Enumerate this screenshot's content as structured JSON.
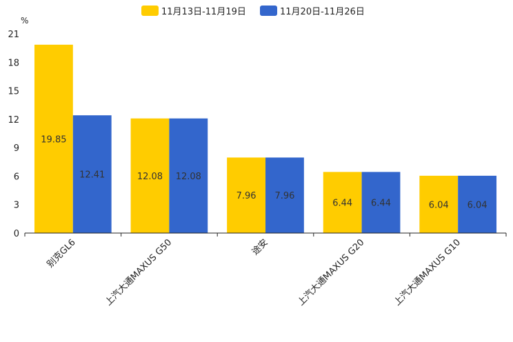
{
  "chart_data": {
    "type": "bar",
    "title": "",
    "xlabel": "",
    "ylabel": "%",
    "ylim": [
      0,
      21
    ],
    "yticks": [
      0,
      3,
      6,
      9,
      12,
      15,
      18,
      21
    ],
    "categories": [
      "别克GL6",
      "上汽大通MAXUS G50",
      "途安",
      "上汽大通MAXUS G20",
      "上汽大通MAXUS G10"
    ],
    "series": [
      {
        "name": "11月13日-11月19日",
        "color": "#FFCC00",
        "values": [
          19.85,
          12.08,
          7.96,
          6.44,
          6.04
        ]
      },
      {
        "name": "11月20日-11月26日",
        "color": "#3366CC",
        "values": [
          12.41,
          12.08,
          7.96,
          6.44,
          6.04
        ]
      }
    ],
    "legend": "top-center",
    "grid": false
  }
}
